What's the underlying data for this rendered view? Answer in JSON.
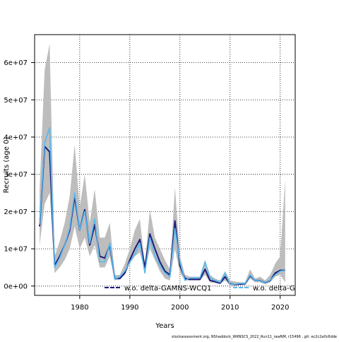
{
  "chart_data": {
    "type": "line",
    "xlabel": "Years",
    "ylabel": "Recruits (age 0)",
    "xlim": [
      1971,
      2023
    ],
    "ylim": [
      -2500000,
      67500000
    ],
    "x_ticks": [
      1980,
      1990,
      2000,
      2010,
      2020
    ],
    "y_ticks": [
      0,
      10000000,
      20000000,
      30000000,
      40000000,
      50000000,
      60000000
    ],
    "y_tick_labels": [
      "0e+00",
      "1e+07",
      "2e+07",
      "3e+07",
      "4e+07",
      "5e+07",
      "6e+07"
    ],
    "grid": true,
    "grid_style": "dotted",
    "legend_placement": "bottom",
    "footer_text": "stockassessment.org, NShaddock_WKNSCS_2022_Run11_rawNM, r15496 , git: ec2c2a0c6dde",
    "colors": {
      "band_gray": "#bdbdbd",
      "series_dark": "#1c1c7a",
      "series_light": "#56b9f0"
    },
    "years": [
      1972,
      1973,
      1974,
      1975,
      1976,
      1977,
      1978,
      1979,
      1980,
      1981,
      1982,
      1983,
      1984,
      1985,
      1986,
      1987,
      1988,
      1989,
      1990,
      1991,
      1992,
      1993,
      1994,
      1995,
      1996,
      1997,
      1998,
      1999,
      2000,
      2001,
      2002,
      2003,
      2004,
      2005,
      2006,
      2007,
      2008,
      2009,
      2010,
      2011,
      2012,
      2013,
      2014,
      2015,
      2016,
      2017,
      2018,
      2019,
      2020,
      2021
    ],
    "band": {
      "lower": [
        11000000,
        22000000,
        25000000,
        3500000,
        5000000,
        7000000,
        10000000,
        16000000,
        10000000,
        13000000,
        8000000,
        11000000,
        5000000,
        5000000,
        8000000,
        1500000,
        2000000,
        3000000,
        6000000,
        8000000,
        9000000,
        4000000,
        10000000,
        7000000,
        4000000,
        2000000,
        1500000,
        10000000,
        3500000,
        1500000,
        1500000,
        1500000,
        1500000,
        3000000,
        1000000,
        800000,
        500000,
        1500000,
        200000,
        200000,
        300000,
        300000,
        2000000,
        1000000,
        1000000,
        500000,
        1000000,
        2500000,
        3000000,
        1000000
      ],
      "upper": [
        26000000,
        58000000,
        65000000,
        8000000,
        12000000,
        17000000,
        24000000,
        38000000,
        21000000,
        30000000,
        17000000,
        26000000,
        13000000,
        13000000,
        17000000,
        3000000,
        3000000,
        6000000,
        10000000,
        15000000,
        18000000,
        6000000,
        20500000,
        13000000,
        10000000,
        7000000,
        4500000,
        26500000,
        8000000,
        3000000,
        2500000,
        2500000,
        2500000,
        7000000,
        3000000,
        2000000,
        1500000,
        4000000,
        1500000,
        1200000,
        1000000,
        1000000,
        4500000,
        2000000,
        2500000,
        1500000,
        3000000,
        6000000,
        8000000,
        28500000
      ]
    },
    "series": [
      {
        "name": "w.o. delta-GAMNS-WCQ1",
        "values": [
          16000000,
          37500000,
          36000000,
          5500000,
          8000000,
          11000000,
          15000000,
          24000000,
          15000000,
          20500000,
          11000000,
          16500000,
          8000000,
          7500000,
          11000000,
          2000000,
          2000000,
          3500000,
          7000000,
          10000000,
          12500000,
          5000000,
          14000000,
          10000000,
          6500000,
          4000000,
          3000000,
          17500000,
          5500000,
          2000000,
          1800000,
          1800000,
          1800000,
          4500000,
          1500000,
          1200000,
          800000,
          2500000,
          600000,
          400000,
          500000,
          600000,
          2800000,
          1500000,
          1500000,
          900000,
          1500000,
          3500000,
          4200000,
          4200000
        ]
      },
      {
        "name": "w.o. delta-GA",
        "values": [
          16500000,
          38500000,
          42500000,
          5000000,
          7500000,
          11000000,
          15500000,
          25000000,
          15000000,
          20000000,
          11500000,
          18000000,
          6500000,
          6500000,
          11500000,
          1800000,
          2500000,
          4000000,
          6500000,
          8500000,
          11500000,
          3500000,
          13000000,
          8000000,
          5500000,
          3500000,
          2500000,
          15500000,
          6500000,
          1500000,
          2200000,
          2200000,
          2200000,
          6500000,
          2200000,
          1500000,
          1000000,
          3500000,
          500000,
          500000,
          700000,
          700000,
          3000000,
          1500000,
          1500000,
          900000,
          1600000,
          3000000,
          4000000,
          4200000
        ]
      }
    ]
  }
}
